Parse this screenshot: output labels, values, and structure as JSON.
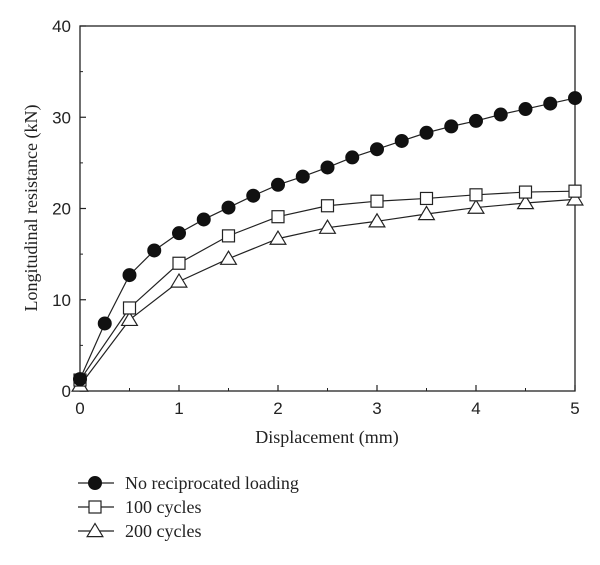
{
  "chart_data": {
    "type": "line",
    "xlabel": "Displacement (mm)",
    "ylabel": "Longitudinal resistance (kN)",
    "xlim": [
      0,
      5
    ],
    "ylim": [
      0,
      40
    ],
    "x_ticks": [
      0,
      1,
      2,
      3,
      4,
      5
    ],
    "y_ticks": [
      0,
      10,
      20,
      30,
      40
    ],
    "grid": false,
    "legend_position": "bottom-left below plot",
    "series": [
      {
        "name": "No reciprocated loading",
        "marker": "filled-circle",
        "x": [
          0,
          0.25,
          0.5,
          0.75,
          1.0,
          1.25,
          1.5,
          1.75,
          2.0,
          2.25,
          2.5,
          2.75,
          3.0,
          3.25,
          3.5,
          3.75,
          4.0,
          4.25,
          4.5,
          4.75,
          5.0
        ],
        "y": [
          1.3,
          7.4,
          12.7,
          15.4,
          17.3,
          18.8,
          20.1,
          21.4,
          22.6,
          23.5,
          24.5,
          25.6,
          26.5,
          27.4,
          28.3,
          29.0,
          29.6,
          30.3,
          30.9,
          31.5,
          32.1
        ]
      },
      {
        "name": "100 cycles",
        "marker": "open-square",
        "x": [
          0,
          0.5,
          1.0,
          1.5,
          2.0,
          2.5,
          3.0,
          3.5,
          4.0,
          4.5,
          5.0
        ],
        "y": [
          1.2,
          9.1,
          14.0,
          17.0,
          19.1,
          20.3,
          20.8,
          21.1,
          21.5,
          21.8,
          21.9
        ]
      },
      {
        "name": "200 cycles",
        "marker": "open-triangle",
        "x": [
          0,
          0.5,
          1.0,
          1.5,
          2.0,
          2.5,
          3.0,
          3.5,
          4.0,
          4.5,
          5.0
        ],
        "y": [
          0.6,
          7.8,
          12.0,
          14.5,
          16.7,
          17.9,
          18.6,
          19.4,
          20.1,
          20.6,
          21.0
        ]
      }
    ]
  }
}
